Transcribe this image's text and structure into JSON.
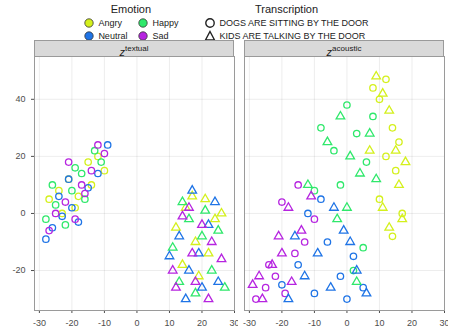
{
  "chart_data": {
    "type": "scatter",
    "legend": "top",
    "grid": true,
    "color_legend_title": "Emotion",
    "shape_legend_title": "Transcription",
    "xlim": [
      -31.5,
      30
    ],
    "xticks": [
      -30,
      -20,
      -10,
      0,
      10,
      20,
      30
    ],
    "ylim": [
      -34,
      55
    ],
    "yticks": [
      -20,
      0,
      20,
      40
    ],
    "panels": [
      {
        "title": {
          "base": "z",
          "superscript": "textual"
        },
        "series": [
          {
            "name": "Angry",
            "transcription": "DOGS ARE SITTING BY THE DOOR",
            "marker": "circle",
            "color": "#d4f01c",
            "x": [
              -27,
              -24,
              -21,
              -18,
              -15,
              -12,
              -10,
              -19,
              -23,
              -14
            ],
            "y": [
              5,
              8,
              12,
              6,
              18,
              20,
              15,
              2,
              0,
              10
            ]
          },
          {
            "name": "Happy",
            "transcription": "DOGS ARE SITTING BY THE DOOR",
            "marker": "circle",
            "color": "#2fe86b",
            "x": [
              -28,
              -25,
              -22,
              -20,
              -17,
              -13,
              -11,
              -26,
              -16,
              -19
            ],
            "y": [
              -2,
              3,
              -4,
              8,
              14,
              22,
              18,
              10,
              5,
              16
            ]
          },
          {
            "name": "Neutral",
            "transcription": "DOGS ARE SITTING BY THE DOOR",
            "marker": "circle",
            "color": "#1f74e6",
            "x": [
              -28,
              -26,
              -23,
              -20,
              -18,
              -15,
              -12,
              -24,
              -21,
              -9
            ],
            "y": [
              -9,
              -5,
              -1,
              2,
              -3,
              9,
              14,
              6,
              12,
              24
            ]
          },
          {
            "name": "Sad",
            "transcription": "DOGS ARE SITTING BY THE DOOR",
            "marker": "circle",
            "color": "#b624e0",
            "x": [
              -27,
              -25,
              -22,
              -19,
              -17,
              -14,
              -12,
              -10,
              -21,
              -16
            ],
            "y": [
              -6,
              0,
              4,
              -2,
              10,
              15,
              24,
              21,
              18,
              7
            ]
          },
          {
            "name": "Angry",
            "transcription": "KIDS ARE TALKING BY THE DOOR",
            "marker": "triangle",
            "color": "#d4f01c",
            "x": [
              12,
              15,
              18,
              21,
              24,
              14,
              19,
              26,
              17,
              22
            ],
            "y": [
              -5,
              2,
              -10,
              5,
              -2,
              -18,
              -22,
              0,
              6,
              -14
            ]
          },
          {
            "name": "Happy",
            "transcription": "KIDS ARE TALKING BY THE DOOR",
            "marker": "triangle",
            "color": "#2fe86b",
            "x": [
              11,
              13,
              16,
              20,
              23,
              25,
              18,
              14,
              21,
              27
            ],
            "y": [
              -12,
              -24,
              -2,
              -8,
              -20,
              -6,
              -28,
              4,
              1,
              -26
            ]
          },
          {
            "name": "Neutral",
            "transcription": "KIDS ARE TALKING BY THE DOOR",
            "marker": "triangle",
            "color": "#1f74e6",
            "x": [
              10,
              13,
              16,
              19,
              22,
              25,
              15,
              20,
              24,
              17
            ],
            "y": [
              -15,
              -8,
              -20,
              -14,
              -4,
              -24,
              -30,
              -26,
              4,
              8
            ]
          },
          {
            "name": "Sad",
            "transcription": "KIDS ARE TALKING BY THE DOOR",
            "marker": "triangle",
            "color": "#b624e0",
            "x": [
              11,
              14,
              17,
              20,
              23,
              26,
              12,
              18,
              22,
              16
            ],
            "y": [
              -20,
              -1,
              -14,
              -4,
              -10,
              -16,
              -26,
              -24,
              -30,
              2
            ]
          }
        ]
      },
      {
        "title": {
          "base": "z",
          "superscript": "acoustic"
        },
        "series": [
          {
            "name": "Angry",
            "transcription": "DOGS ARE SITTING BY THE DOOR",
            "marker": "circle",
            "color": "#d4f01c",
            "x": [
              8,
              10,
              12,
              14,
              16,
              12,
              15,
              10,
              17,
              14
            ],
            "y": [
              44,
              40,
              47,
              30,
              25,
              20,
              15,
              5,
              0,
              -8
            ]
          },
          {
            "name": "Happy",
            "transcription": "DOGS ARE SITTING BY THE DOOR",
            "marker": "circle",
            "color": "#2fe86b",
            "x": [
              -8,
              -4,
              0,
              3,
              6,
              -2,
              2,
              5,
              -10,
              8
            ],
            "y": [
              30,
              22,
              38,
              28,
              18,
              10,
              -20,
              -12,
              8,
              34
            ]
          },
          {
            "name": "Neutral",
            "transcription": "DOGS ARE SITTING BY THE DOOR",
            "marker": "circle",
            "color": "#1f74e6",
            "x": [
              -20,
              -15,
              -10,
              -6,
              -2,
              2,
              5,
              -12,
              -8,
              0
            ],
            "y": [
              -25,
              -18,
              -28,
              -10,
              -22,
              -15,
              -26,
              0,
              5,
              -30
            ]
          },
          {
            "name": "Sad",
            "transcription": "DOGS ARE SITTING BY THE DOOR",
            "marker": "circle",
            "color": "#b624e0",
            "x": [
              -28,
              -25,
              -22,
              -19,
              -16,
              -13,
              -10,
              -20,
              -15,
              -24
            ],
            "y": [
              -30,
              -26,
              -22,
              -28,
              -14,
              -10,
              -2,
              4,
              10,
              -18
            ]
          },
          {
            "name": "Angry",
            "transcription": "KIDS ARE TALKING BY THE DOOR",
            "marker": "triangle",
            "color": "#d4f01c",
            "x": [
              9,
              11,
              13,
              15,
              18,
              16,
              11,
              13,
              7,
              17
            ],
            "y": [
              48,
              42,
              36,
              22,
              18,
              10,
              2,
              -5,
              22,
              -2
            ]
          },
          {
            "name": "Happy",
            "transcription": "KIDS ARE TALKING BY THE DOOR",
            "marker": "triangle",
            "color": "#2fe86b",
            "x": [
              -6,
              -2,
              1,
              4,
              7,
              -12,
              -3,
              3,
              9,
              0
            ],
            "y": [
              25,
              34,
              20,
              14,
              28,
              10,
              -2,
              -24,
              12,
              2
            ]
          },
          {
            "name": "Neutral",
            "transcription": "KIDS ARE TALKING BY THE DOOR",
            "marker": "triangle",
            "color": "#1f74e6",
            "x": [
              -18,
              -13,
              -9,
              -5,
              -1,
              3,
              6,
              -16,
              -4,
              1
            ],
            "y": [
              -30,
              -22,
              -14,
              -26,
              -6,
              -20,
              -28,
              -8,
              2,
              -10
            ]
          },
          {
            "name": "Sad",
            "transcription": "KIDS ARE TALKING BY THE DOOR",
            "marker": "triangle",
            "color": "#b624e0",
            "x": [
              -29,
              -26,
              -23,
              -20,
              -17,
              -14,
              -11,
              -21,
              -18,
              -27
            ],
            "y": [
              -25,
              -30,
              -18,
              -14,
              -24,
              -6,
              6,
              -8,
              2,
              -22
            ]
          }
        ]
      }
    ]
  }
}
